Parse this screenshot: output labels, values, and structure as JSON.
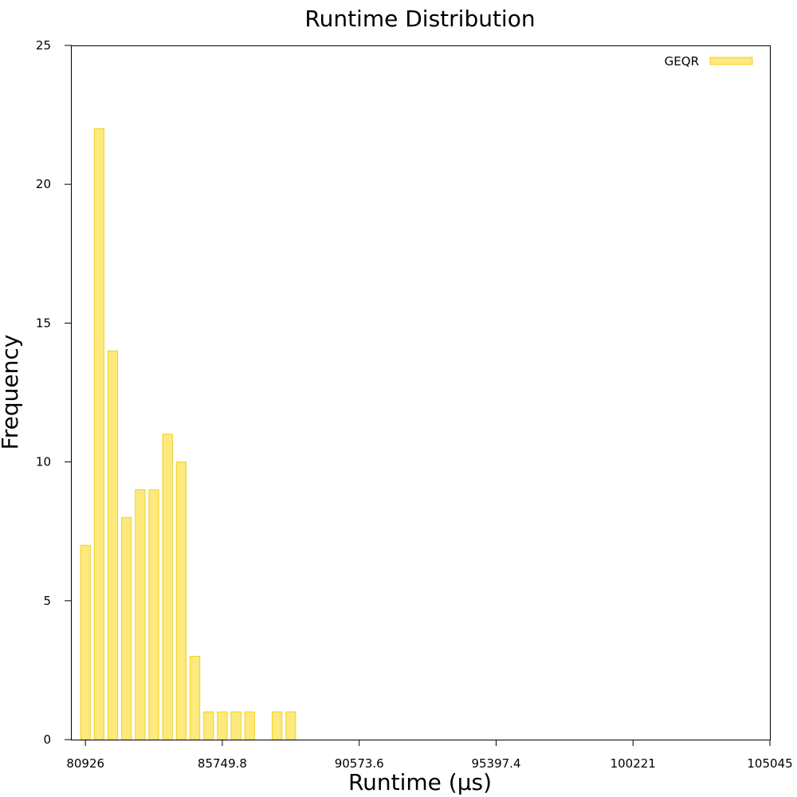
{
  "chart_data": {
    "type": "bar",
    "title": "Runtime Distribution",
    "xlabel": "Runtime (µs)",
    "ylabel": "Frequency",
    "xlim": [
      80443.62,
      105045
    ],
    "ylim": [
      0,
      25
    ],
    "x_ticks": [
      80926,
      85749.8,
      90573.6,
      95397.4,
      100221,
      105045
    ],
    "x_tick_labels": [
      "80926",
      "85749.8",
      "90573.6",
      "95397.4",
      "100221",
      "105045"
    ],
    "y_ticks": [
      0,
      5,
      10,
      15,
      20,
      25
    ],
    "y_tick_labels": [
      "0",
      "5",
      "10",
      "15",
      "20",
      "25"
    ],
    "bin_width": 482.38,
    "grid": false,
    "legend_position": "top-right",
    "colors": {
      "bar_fill": "#fde97c",
      "bar_stroke": "#f0d020",
      "axis": "#000000"
    },
    "series": [
      {
        "name": "GEQR",
        "bins": [
          {
            "x": 80926.0,
            "value": 7
          },
          {
            "x": 81408.4,
            "value": 22
          },
          {
            "x": 81890.8,
            "value": 14
          },
          {
            "x": 82373.1,
            "value": 8
          },
          {
            "x": 82855.5,
            "value": 9
          },
          {
            "x": 83337.9,
            "value": 9
          },
          {
            "x": 83820.3,
            "value": 11
          },
          {
            "x": 84302.7,
            "value": 10
          },
          {
            "x": 84785.0,
            "value": 3
          },
          {
            "x": 85267.4,
            "value": 1
          },
          {
            "x": 85749.8,
            "value": 1
          },
          {
            "x": 86232.2,
            "value": 1
          },
          {
            "x": 86714.6,
            "value": 1
          },
          {
            "x": 87679.3,
            "value": 1
          },
          {
            "x": 88161.7,
            "value": 1
          }
        ]
      }
    ]
  }
}
